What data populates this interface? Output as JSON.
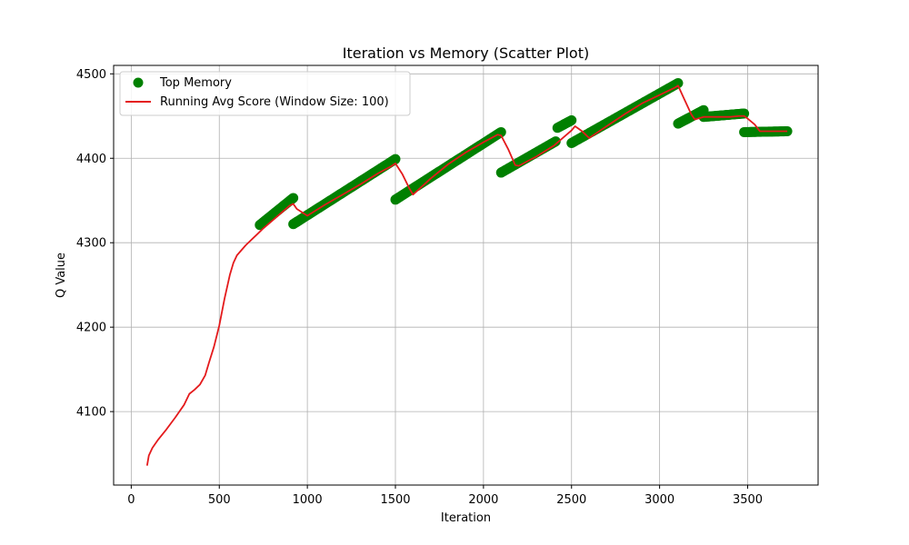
{
  "chart_data": {
    "type": "scatter",
    "title": "Iteration vs Memory (Scatter Plot)",
    "xlabel": "Iteration",
    "ylabel": "Q Value",
    "xlim": [
      -100,
      3900
    ],
    "ylim": [
      4013,
      4510
    ],
    "xticks": [
      0,
      500,
      1000,
      1500,
      2000,
      2500,
      3000,
      3500
    ],
    "yticks": [
      4100,
      4200,
      4300,
      4400,
      4500
    ],
    "grid": true,
    "legend_position": "top-left",
    "series": [
      {
        "name": "Top Memory",
        "kind": "scatter",
        "color": "#008000",
        "segments": [
          {
            "x_start": 730,
            "x_end": 920,
            "y_start": 4321,
            "y_end": 4353
          },
          {
            "x_start": 920,
            "x_end": 1500,
            "y_start": 4322,
            "y_end": 4399
          },
          {
            "x_start": 1500,
            "x_end": 2100,
            "y_start": 4351,
            "y_end": 4431
          },
          {
            "x_start": 2100,
            "x_end": 2410,
            "y_start": 4383,
            "y_end": 4420
          },
          {
            "x_start": 2420,
            "x_end": 2500,
            "y_start": 4436,
            "y_end": 4445
          },
          {
            "x_start": 2500,
            "x_end": 3105,
            "y_start": 4418,
            "y_end": 4489
          },
          {
            "x_start": 3105,
            "x_end": 3250,
            "y_start": 4441,
            "y_end": 4457
          },
          {
            "x_start": 3250,
            "x_end": 3480,
            "y_start": 4449,
            "y_end": 4453
          },
          {
            "x_start": 3480,
            "x_end": 3725,
            "y_start": 4431,
            "y_end": 4432
          }
        ]
      },
      {
        "name": "Running Avg Score (Window Size: 100)",
        "kind": "line",
        "color": "#e41a1c",
        "x": [
          90,
          100,
          120,
          150,
          200,
          250,
          300,
          330,
          360,
          390,
          420,
          440,
          470,
          500,
          530,
          560,
          580,
          600,
          650,
          700,
          750,
          800,
          850,
          900,
          920,
          940,
          1000,
          1100,
          1200,
          1300,
          1400,
          1480,
          1500,
          1540,
          1580,
          1600,
          1700,
          1800,
          1900,
          2000,
          2080,
          2100,
          2140,
          2180,
          2200,
          2300,
          2400,
          2500,
          2520,
          2560,
          2600,
          2700,
          2800,
          2900,
          3000,
          3090,
          3105,
          3140,
          3180,
          3200,
          3250,
          3300,
          3350,
          3400,
          3450,
          3480,
          3500,
          3540,
          3570,
          3600,
          3650,
          3700,
          3725
        ],
        "y": [
          4036,
          4048,
          4057,
          4066,
          4079,
          4093,
          4108,
          4121,
          4126,
          4132,
          4143,
          4157,
          4177,
          4202,
          4234,
          4262,
          4276,
          4285,
          4297,
          4307,
          4317,
          4326,
          4335,
          4344,
          4346,
          4340,
          4332,
          4345,
          4357,
          4369,
          4382,
          4391,
          4394,
          4381,
          4364,
          4357,
          4376,
          4393,
          4407,
          4419,
          4428,
          4427,
          4411,
          4392,
          4391,
          4402,
          4415,
          4433,
          4438,
          4432,
          4424,
          4438,
          4452,
          4465,
          4475,
          4484,
          4486,
          4470,
          4452,
          4446,
          4449,
          4449,
          4449,
          4449,
          4450,
          4450,
          4447,
          4440,
          4432,
          4432,
          4432,
          4432,
          4432
        ]
      }
    ]
  }
}
